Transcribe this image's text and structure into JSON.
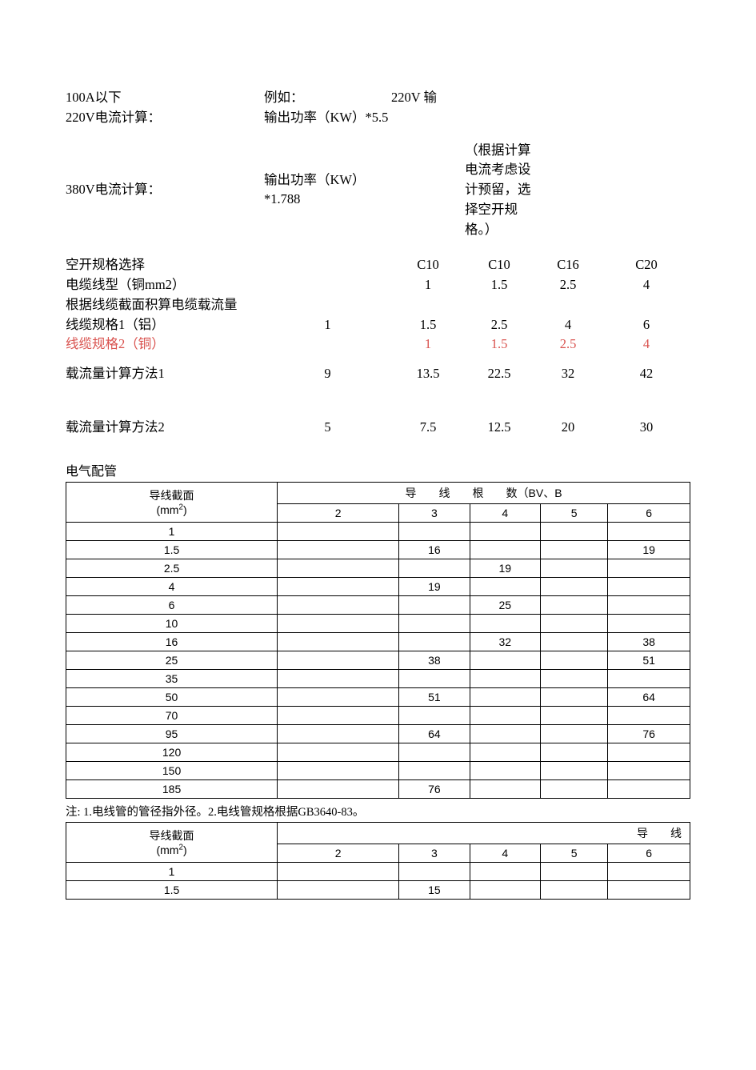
{
  "upper": {
    "r1": {
      "a": "100A以下",
      "b": "例如：",
      "c": "220V 输",
      "d": "",
      "e": "",
      "f": ""
    },
    "r2": {
      "a": "220V电流计算：",
      "b": "输出功率（KW）*5.5",
      "c": "",
      "d": "",
      "e": "",
      "f": ""
    },
    "r3": {
      "a": "380V电流计算：",
      "b": "输出功率（KW）*1.788",
      "c": "",
      "d": "（根据计算电流考虑设计预留，选择空开规格。）",
      "e": "",
      "f": ""
    },
    "r4": {
      "a": "空开规格选择",
      "b": "",
      "c": "C10",
      "d": "C10",
      "e": "C16",
      "f": "C20"
    },
    "r5": {
      "a": "电缆线型（铜mm2）",
      "b": "",
      "c": "1",
      "d": "1.5",
      "e": "2.5",
      "f": "4"
    },
    "r6": {
      "a": "根据线缆截面积算电缆载流量",
      "b": "",
      "c": "",
      "d": "",
      "e": "",
      "f": ""
    },
    "r7": {
      "a": "线缆规格1（铝）",
      "b": "1",
      "c": "1.5",
      "d": "2.5",
      "e": "4",
      "f": "6"
    },
    "r8": {
      "a": "线缆规格2（铜）",
      "b": "",
      "c": "1",
      "d": "1.5",
      "e": "2.5",
      "f": "4"
    },
    "r9": {
      "a": "载流量计算方法1",
      "b": "9",
      "c": "13.5",
      "d": "22.5",
      "e": "32",
      "f": "42"
    },
    "r10": {
      "a": "载流量计算方法2",
      "b": "5",
      "c": "7.5",
      "d": "12.5",
      "e": "20",
      "f": "30"
    }
  },
  "section1": {
    "title": "电气配管",
    "table": {
      "header_corner_line1": "导线截面",
      "header_corner_line2": "(mm²)",
      "header_right": "导　　线　　根　　数（BV、B",
      "cols": [
        "2",
        "3",
        "4",
        "5",
        "6"
      ],
      "rows": [
        {
          "label": "1",
          "cells": [
            "",
            "",
            "",
            "",
            ""
          ]
        },
        {
          "label": "1.5",
          "cells": [
            "",
            "16",
            "",
            "",
            "19"
          ]
        },
        {
          "label": "2.5",
          "cells": [
            "",
            "",
            "19",
            "",
            ""
          ]
        },
        {
          "label": "4",
          "cells": [
            "",
            "19",
            "",
            "",
            ""
          ]
        },
        {
          "label": "6",
          "cells": [
            "",
            "",
            "25",
            "",
            ""
          ]
        },
        {
          "label": "10",
          "cells": [
            "",
            "",
            "",
            "",
            ""
          ]
        },
        {
          "label": "16",
          "cells": [
            "",
            "",
            "32",
            "",
            "38"
          ]
        },
        {
          "label": "25",
          "cells": [
            "",
            "38",
            "",
            "",
            "51"
          ]
        },
        {
          "label": "35",
          "cells": [
            "",
            "",
            "",
            "",
            ""
          ]
        },
        {
          "label": "50",
          "cells": [
            "",
            "51",
            "",
            "",
            "64"
          ]
        },
        {
          "label": "70",
          "cells": [
            "",
            "",
            "",
            "",
            ""
          ]
        },
        {
          "label": "95",
          "cells": [
            "",
            "64",
            "",
            "",
            "76"
          ]
        },
        {
          "label": "120",
          "cells": [
            "",
            "",
            "",
            "",
            ""
          ]
        },
        {
          "label": "150",
          "cells": [
            "",
            "",
            "",
            "",
            ""
          ]
        },
        {
          "label": "185",
          "cells": [
            "",
            "76",
            "",
            "",
            ""
          ]
        }
      ]
    },
    "note": "注: 1.电线管的管径指外径。2.电线管规格根据GB3640-83。"
  },
  "section2": {
    "table": {
      "header_corner_line1": "导线截面",
      "header_corner_line2": "(mm²)",
      "header_right": "导　　线",
      "cols": [
        "2",
        "3",
        "4",
        "5",
        "6"
      ],
      "rows": [
        {
          "label": "1",
          "cells": [
            "",
            "",
            "",
            "",
            ""
          ]
        },
        {
          "label": "1.5",
          "cells": [
            "",
            "15",
            "",
            "",
            ""
          ]
        }
      ]
    }
  },
  "colors": {
    "text": "#000000",
    "red": "#d9534f",
    "bg": "#ffffff",
    "border": "#000000"
  }
}
